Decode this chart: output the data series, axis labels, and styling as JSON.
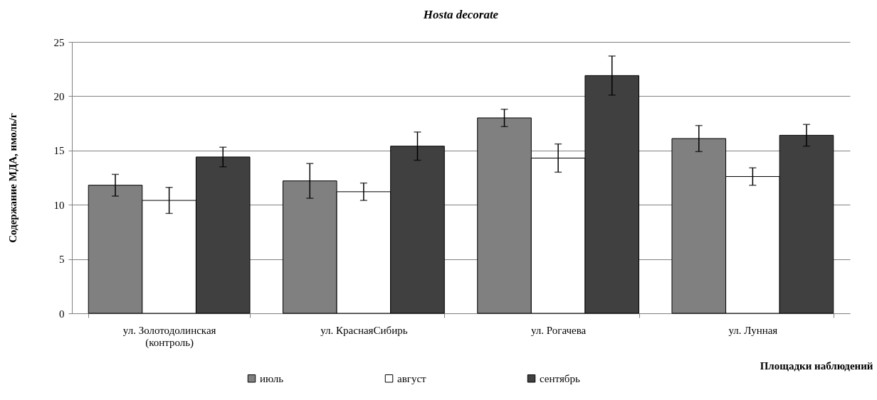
{
  "chart_data": {
    "type": "bar",
    "title": "Hosta decorate",
    "xlabel": "Площадки наблюдений",
    "ylabel": "Содержание МДА, нмоль/г",
    "categories": [
      "ул. Золотодолинская\n(контроль)",
      "ул. КраснаяСибирь",
      "ул. Рогачева",
      "ул. Лунная"
    ],
    "series": [
      {
        "name": "июль",
        "color": "#808080",
        "values": [
          11.8,
          12.2,
          18.0,
          16.1
        ],
        "errors": [
          1.0,
          1.6,
          0.8,
          1.2
        ]
      },
      {
        "name": "август",
        "color": "#ffffff",
        "values": [
          10.4,
          11.2,
          14.3,
          12.6
        ],
        "errors": [
          1.2,
          0.8,
          1.3,
          0.8
        ]
      },
      {
        "name": "сентябрь",
        "color": "#404040",
        "values": [
          14.4,
          15.4,
          21.9,
          16.4
        ],
        "errors": [
          0.9,
          1.3,
          1.8,
          1.0
        ]
      }
    ],
    "ylim": [
      0,
      25
    ],
    "yticks": [
      0,
      5,
      10,
      15,
      20,
      25
    ],
    "grid": "y",
    "legend": "bottom"
  }
}
